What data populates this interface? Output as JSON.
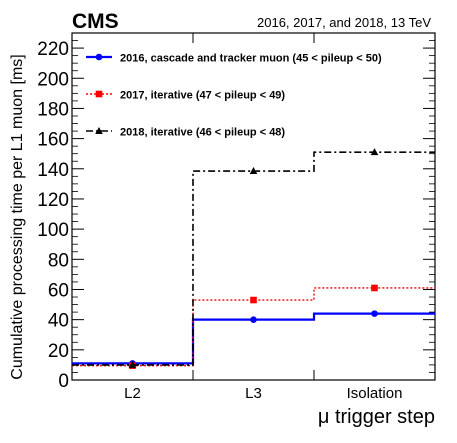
{
  "chart_data": {
    "type": "line",
    "experiment": "CMS",
    "energy_label": "2016, 2017, and 2018, 13 TeV",
    "xlabel": "μ trigger step",
    "ylabel": "Cumulative processing time per L1 muon [ms]",
    "categories": [
      "L2",
      "L3",
      "Isolation"
    ],
    "ylim": [
      0,
      230
    ],
    "yticks": [
      0,
      20,
      40,
      60,
      80,
      100,
      120,
      140,
      160,
      180,
      200,
      220
    ],
    "grid": false,
    "legend_position": "top-left",
    "series": [
      {
        "name": "2016, cascade and tracker muon (45 < pileup < 50)",
        "values": [
          11,
          40,
          44
        ],
        "color": "#0000ff",
        "line_style": "solid",
        "marker": "circle"
      },
      {
        "name": "2017, iterative (47 < pileup < 49)",
        "values": [
          9.5,
          53,
          61
        ],
        "color": "#ff0000",
        "line_style": "dotted",
        "marker": "square"
      },
      {
        "name": "2018, iterative (46 < pileup < 48)",
        "values": [
          10,
          138.5,
          151
        ],
        "color": "#000000",
        "line_style": "dashdot",
        "marker": "triangle"
      }
    ]
  }
}
